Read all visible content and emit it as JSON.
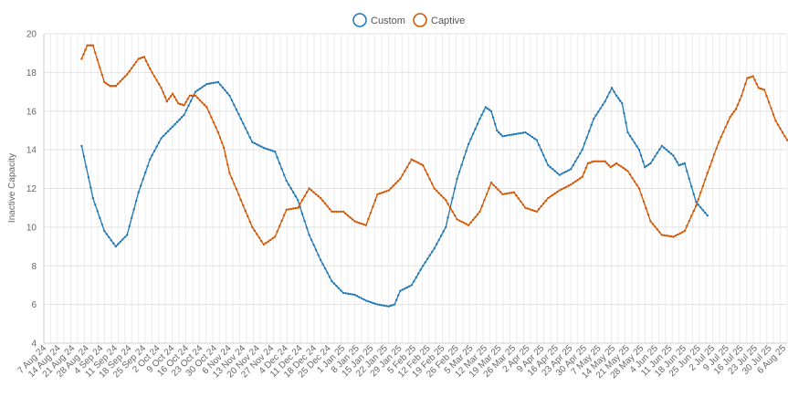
{
  "chart_data": {
    "type": "line",
    "ylabel": "Inactive Capacity",
    "ylim": [
      4,
      20
    ],
    "y_step": 2,
    "grid": true,
    "legend_position": "top-center",
    "x_labels": [
      "7 Aug 24",
      "14 Aug 24",
      "21 Aug 24",
      "28 Aug 24",
      "4 Sep 24",
      "11 Sep 24",
      "18 Sep 24",
      "25 Sep 24",
      "2 Oct 24",
      "9 Oct 24",
      "16 Oct 24",
      "23 Oct 24",
      "30 Oct 24",
      "6 Nov 24",
      "13 Nov 24",
      "20 Nov 24",
      "27 Nov 24",
      "4 Dec 24",
      "11 Dec 24",
      "18 Dec 24",
      "25 Dec 24",
      "1 Jan 25",
      "8 Jan 25",
      "15 Jan 25",
      "22 Jan 25",
      "29 Jan 25",
      "5 Feb 25",
      "12 Feb 25",
      "19 Feb 25",
      "26 Feb 25",
      "5 Mar 25",
      "12 Mar 25",
      "19 Mar 25",
      "26 Mar 25",
      "2 Apr 25",
      "9 Apr 25",
      "16 Apr 25",
      "23 Apr 25",
      "30 Apr 25",
      "7 May 25",
      "14 May 25",
      "21 May 25",
      "28 May 25",
      "4 Jun 25",
      "11 Jun 25",
      "18 Jun 25",
      "25 Jun 25",
      "2 Jul 25",
      "9 Jul 25",
      "16 Jul 25",
      "23 Jul 25",
      "30 Jul 25",
      "6 Aug 25"
    ],
    "series": [
      {
        "name": "Custom",
        "color": "#1f77b4",
        "points": [
          [
            3,
            14.2
          ],
          [
            4,
            11.5
          ],
          [
            5,
            9.8
          ],
          [
            6,
            9.0
          ],
          [
            7,
            9.6
          ],
          [
            8,
            11.8
          ],
          [
            9,
            13.5
          ],
          [
            10,
            14.6
          ],
          [
            11,
            15.2
          ],
          [
            12,
            15.8
          ],
          [
            13,
            17.0
          ],
          [
            14,
            17.4
          ],
          [
            15,
            17.5
          ],
          [
            16,
            16.8
          ],
          [
            17,
            15.6
          ],
          [
            18,
            14.4
          ],
          [
            19,
            14.1
          ],
          [
            20,
            13.9
          ],
          [
            21,
            12.4
          ],
          [
            22,
            11.4
          ],
          [
            23,
            9.6
          ],
          [
            24,
            8.3
          ],
          [
            25,
            7.2
          ],
          [
            26,
            6.6
          ],
          [
            27,
            6.5
          ],
          [
            28,
            6.2
          ],
          [
            29,
            6.0
          ],
          [
            30,
            5.9
          ],
          [
            30.5,
            6.0
          ],
          [
            31,
            6.7
          ],
          [
            32,
            7.0
          ],
          [
            33,
            8.0
          ],
          [
            34,
            8.9
          ],
          [
            35,
            10.0
          ],
          [
            36,
            12.5
          ],
          [
            37,
            14.3
          ],
          [
            38,
            15.6
          ],
          [
            38.5,
            16.2
          ],
          [
            39,
            16.0
          ],
          [
            39.5,
            15.0
          ],
          [
            40,
            14.7
          ],
          [
            41,
            14.8
          ],
          [
            42,
            14.9
          ],
          [
            43,
            14.5
          ],
          [
            44,
            13.2
          ],
          [
            45,
            12.7
          ],
          [
            46,
            13.0
          ],
          [
            47,
            14.0
          ],
          [
            48,
            15.6
          ],
          [
            49,
            16.5
          ],
          [
            49.6,
            17.2
          ],
          [
            50,
            16.8
          ],
          [
            50.5,
            16.4
          ],
          [
            51,
            14.9
          ],
          [
            52,
            14.0
          ],
          [
            52.5,
            13.1
          ],
          [
            53,
            13.3
          ],
          [
            54,
            14.2
          ],
          [
            55,
            13.7
          ],
          [
            55.5,
            13.2
          ],
          [
            56,
            13.3
          ],
          [
            57,
            11.3
          ],
          [
            58,
            10.6
          ]
        ]
      },
      {
        "name": "Captive",
        "color": "#d35400",
        "points": [
          [
            3,
            18.7
          ],
          [
            3.5,
            19.4
          ],
          [
            4,
            19.4
          ],
          [
            5,
            17.5
          ],
          [
            5.5,
            17.3
          ],
          [
            6,
            17.3
          ],
          [
            7,
            17.9
          ],
          [
            8,
            18.7
          ],
          [
            8.5,
            18.8
          ],
          [
            9,
            18.2
          ],
          [
            10,
            17.2
          ],
          [
            10.5,
            16.5
          ],
          [
            11,
            16.9
          ],
          [
            11.5,
            16.4
          ],
          [
            12,
            16.3
          ],
          [
            12.5,
            16.8
          ],
          [
            13,
            16.8
          ],
          [
            14,
            16.2
          ],
          [
            15,
            14.9
          ],
          [
            15.5,
            14.1
          ],
          [
            16,
            12.8
          ],
          [
            17,
            11.4
          ],
          [
            18,
            10.0
          ],
          [
            19,
            9.1
          ],
          [
            20,
            9.5
          ],
          [
            21,
            10.9
          ],
          [
            22,
            11.0
          ],
          [
            23,
            12.0
          ],
          [
            24,
            11.5
          ],
          [
            25,
            10.8
          ],
          [
            26,
            10.8
          ],
          [
            27,
            10.3
          ],
          [
            28,
            10.1
          ],
          [
            29,
            11.7
          ],
          [
            30,
            11.9
          ],
          [
            31,
            12.5
          ],
          [
            32,
            13.5
          ],
          [
            33,
            13.2
          ],
          [
            34,
            12.0
          ],
          [
            35,
            11.4
          ],
          [
            36,
            10.4
          ],
          [
            37,
            10.1
          ],
          [
            38,
            10.8
          ],
          [
            39,
            12.3
          ],
          [
            40,
            11.7
          ],
          [
            41,
            11.8
          ],
          [
            42,
            11.0
          ],
          [
            43,
            10.8
          ],
          [
            44,
            11.5
          ],
          [
            45,
            11.9
          ],
          [
            46,
            12.2
          ],
          [
            47,
            12.6
          ],
          [
            47.5,
            13.3
          ],
          [
            48,
            13.4
          ],
          [
            49,
            13.4
          ],
          [
            49.5,
            13.1
          ],
          [
            50,
            13.3
          ],
          [
            51,
            12.9
          ],
          [
            52,
            12.0
          ],
          [
            53,
            10.3
          ],
          [
            54,
            9.6
          ],
          [
            55,
            9.5
          ],
          [
            56,
            9.8
          ],
          [
            57,
            11.1
          ],
          [
            58,
            12.8
          ],
          [
            59,
            14.4
          ],
          [
            60,
            15.7
          ],
          [
            60.5,
            16.1
          ],
          [
            61,
            16.8
          ],
          [
            61.5,
            17.7
          ],
          [
            62,
            17.8
          ],
          [
            62.5,
            17.2
          ],
          [
            63,
            17.1
          ],
          [
            64,
            15.5
          ],
          [
            65,
            14.5
          ]
        ]
      }
    ]
  }
}
